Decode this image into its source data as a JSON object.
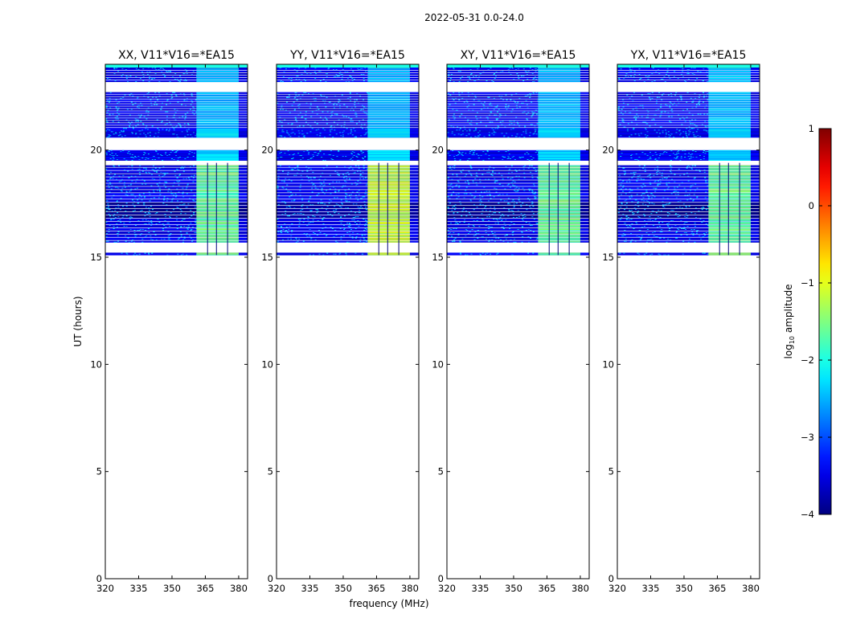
{
  "figure": {
    "suptitle": "2022-05-31 0.0-24.0",
    "xlabel": "frequency (MHz)",
    "ylabel": "UT (hours)",
    "colorbar_label_prefix": "log",
    "colorbar_label_sub": "10",
    "colorbar_label_suffix": " amplitude"
  },
  "chart_data": {
    "type": "heatmap",
    "panels": [
      {
        "title": "XX, V11*V16=*EA15",
        "pol": "XX"
      },
      {
        "title": "YY, V11*V16=*EA15",
        "pol": "YY"
      },
      {
        "title": "XY, V11*V16=*EA15",
        "pol": "XY"
      },
      {
        "title": "YX, V11*V16=*EA15",
        "pol": "YX"
      }
    ],
    "xlim": [
      320,
      384
    ],
    "ylim": [
      0,
      24
    ],
    "xticks": [
      320,
      335,
      350,
      365,
      380
    ],
    "xtick_labels": [
      "320",
      "335",
      "350",
      "365",
      "380"
    ],
    "yticks": [
      0,
      5,
      10,
      15,
      20
    ],
    "ytick_labels": [
      "0",
      "5",
      "10",
      "15",
      "20"
    ],
    "colorbar": {
      "colormap": "jet",
      "range": [
        -4,
        1
      ],
      "ticks": [
        -4,
        -3,
        -2,
        -1,
        0,
        1
      ],
      "tick_labels": [
        "−4",
        "−3",
        "−2",
        "−1",
        "0",
        "1"
      ]
    },
    "data_coverage_ut": [
      15.1,
      24.0
    ],
    "rfi_band_mhz": [
      361,
      380
    ],
    "rfi_channel_boundaries_mhz": [
      366,
      370,
      375
    ],
    "blank_ut_gaps": [
      [
        20.0,
        20.6
      ],
      [
        19.3,
        19.5
      ],
      [
        22.7,
        23.2
      ],
      [
        15.2,
        15.7
      ]
    ]
  }
}
